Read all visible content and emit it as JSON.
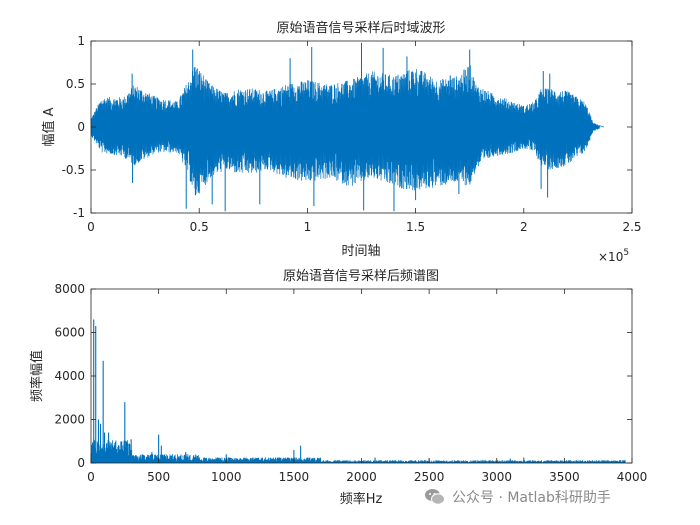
{
  "chart_data": [
    {
      "type": "line",
      "title": "原始语音信号采样后时域波形",
      "xlabel": "时间轴",
      "ylabel": "幅值 A",
      "xlim": [
        0,
        250000
      ],
      "ylim": [
        -1,
        1
      ],
      "x_tick_labels": [
        "0",
        "0.5",
        "1",
        "1.5",
        "2",
        "2.5"
      ],
      "y_tick_labels": [
        "-1",
        "-0.5",
        "0",
        "0.5",
        "1"
      ],
      "x_exponent_base": "×10",
      "x_exponent_power": "5",
      "series": [
        {
          "color": "#0072BD",
          "envelope_x": [
            0,
            5000,
            15000,
            20000,
            30000,
            40000,
            45000,
            48000,
            55000,
            62000,
            68000,
            75000,
            82000,
            90000,
            100000,
            110000,
            120000,
            125000,
            130000,
            140000,
            150000,
            160000,
            170000,
            175000,
            178000,
            185000,
            195000,
            200000,
            205000,
            208000,
            212000,
            220000,
            228000,
            230000,
            232000,
            235000
          ],
          "envelope_top": [
            0.1,
            0.35,
            0.35,
            0.5,
            0.35,
            0.3,
            0.55,
            0.75,
            0.5,
            0.4,
            0.45,
            0.45,
            0.42,
            0.5,
            0.55,
            0.5,
            0.55,
            0.6,
            0.65,
            0.6,
            0.7,
            0.55,
            0.6,
            0.75,
            0.5,
            0.4,
            0.3,
            0.25,
            0.3,
            0.45,
            0.45,
            0.42,
            0.3,
            0.2,
            0.05,
            0.02
          ],
          "envelope_bottom": [
            -0.1,
            -0.3,
            -0.35,
            -0.45,
            -0.3,
            -0.3,
            -0.55,
            -0.85,
            -0.6,
            -0.5,
            -0.55,
            -0.55,
            -0.5,
            -0.6,
            -0.65,
            -0.6,
            -0.7,
            -0.65,
            -0.6,
            -0.7,
            -0.75,
            -0.7,
            -0.65,
            -0.7,
            -0.5,
            -0.35,
            -0.3,
            -0.25,
            -0.3,
            -0.45,
            -0.5,
            -0.45,
            -0.3,
            -0.2,
            -0.05,
            -0.02
          ],
          "spikes": [
            [
              19000,
              0.62
            ],
            [
              19200,
              -0.65
            ],
            [
              44000,
              -0.95
            ],
            [
              47000,
              0.9
            ],
            [
              56000,
              -0.9
            ],
            [
              62000,
              -0.98
            ],
            [
              78000,
              -0.9
            ],
            [
              92000,
              0.8
            ],
            [
              102000,
              0.93
            ],
            [
              103000,
              -0.92
            ],
            [
              125000,
              0.98
            ],
            [
              126000,
              -0.97
            ],
            [
              135000,
              0.92
            ],
            [
              140000,
              -0.98
            ],
            [
              146000,
              0.82
            ],
            [
              150000,
              -0.85
            ],
            [
              166000,
              0.6
            ],
            [
              170000,
              -0.78
            ],
            [
              175000,
              0.9
            ],
            [
              208000,
              -0.72
            ],
            [
              209000,
              0.65
            ],
            [
              211000,
              -0.82
            ],
            [
              212000,
              0.62
            ]
          ]
        }
      ]
    },
    {
      "type": "bar",
      "title": "原始语音信号采样后频谱图",
      "xlabel": "频率Hz",
      "ylabel": "频率幅值",
      "xlim": [
        0,
        4000
      ],
      "ylim": [
        0,
        8000
      ],
      "x_tick_labels": [
        "0",
        "500",
        "1000",
        "1500",
        "2000",
        "2500",
        "3000",
        "3500",
        "4000"
      ],
      "y_tick_labels": [
        "0",
        "2000",
        "4000",
        "6000",
        "8000"
      ],
      "series": [
        {
          "color": "#0072BD",
          "peaks": [
            [
              20,
              6600
            ],
            [
              35,
              6300
            ],
            [
              55,
              2000
            ],
            [
              70,
              1800
            ],
            [
              90,
              4700
            ],
            [
              100,
              1400
            ],
            [
              130,
              1400
            ],
            [
              150,
              900
            ],
            [
              250,
              2800
            ],
            [
              260,
              1000
            ],
            [
              300,
              600
            ],
            [
              450,
              500
            ],
            [
              500,
              1300
            ],
            [
              520,
              800
            ],
            [
              700,
              500
            ],
            [
              1000,
              400
            ],
            [
              1500,
              600
            ],
            [
              1550,
              800
            ],
            [
              2100,
              250
            ],
            [
              2500,
              200
            ],
            [
              3100,
              200
            ],
            [
              3200,
              250
            ]
          ]
        }
      ]
    }
  ],
  "watermark": {
    "text": "公众号 · Matlab科研助手",
    "icon": "wechat-icon"
  }
}
